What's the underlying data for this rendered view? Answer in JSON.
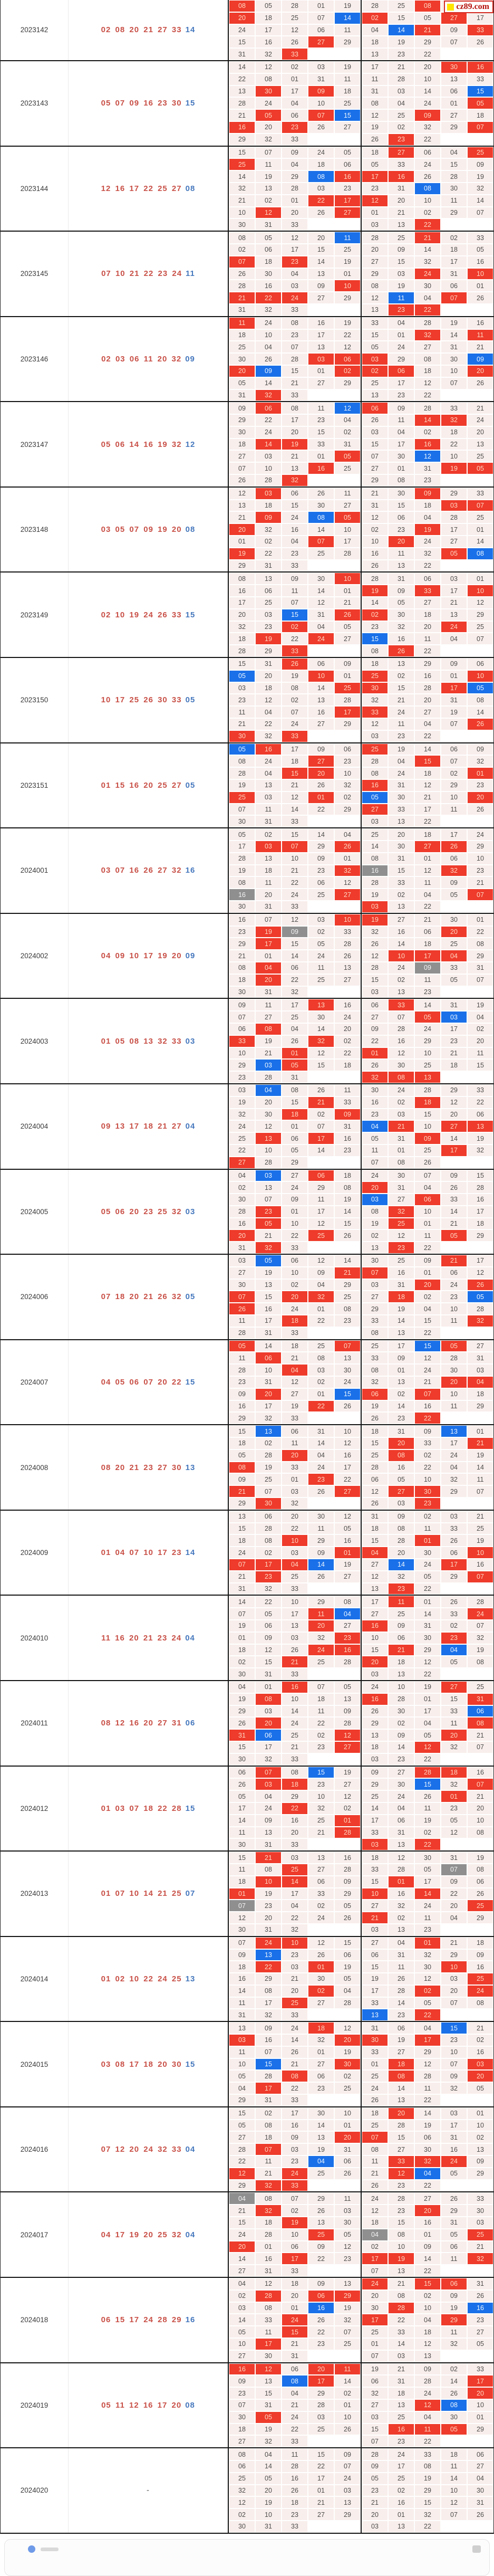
{
  "watermark": {
    "text": "cz89.com"
  },
  "labels": {
    "pending": "-"
  },
  "colors": {
    "cell_red": "#ee3b2b",
    "cell_blue": "#1a70e8",
    "cell_gray": "#8f8f8f",
    "win_red": "#c85047",
    "win_blue": "#4678bd"
  },
  "blocks": [
    {
      "period": "2023142",
      "reds": [
        "02",
        "08",
        "20",
        "21",
        "27",
        "33"
      ],
      "blue": "14",
      "clipped": true,
      "gridA": [
        "08 05 28 01 19",
        "20 18 25 07 14",
        "24 17 12 06 11",
        "15 16 26 27 29",
        "31 32 33"
      ],
      "gridB": [
        "28 25 08 _ _",
        "02 15 05 27 17",
        "04 14 21 09 33",
        "18 19 29 07 26",
        "13 23 22"
      ]
    },
    {
      "period": "2023143",
      "reds": [
        "05",
        "07",
        "09",
        "16",
        "23",
        "30"
      ],
      "blue": "15",
      "gridA": [
        "14 12 02 03 19",
        "22 08 01 31 11",
        "13 30 17 09 18",
        "28 24 04 10 25",
        "21 05 06 07 15",
        "16 20 23 26 27",
        "29 32 33"
      ],
      "gridB": [
        "17 21 20 30 16",
        "11 28 10 13 33",
        "31 03 14 06 15",
        "08 04 24 01 05",
        "12 25 09 27 18",
        "19 02 32 29 07",
        "26 23 22"
      ]
    },
    {
      "period": "2023144",
      "reds": [
        "12",
        "16",
        "17",
        "22",
        "25",
        "27"
      ],
      "blue": "08",
      "gridA": [
        "15 07 09 24 05",
        "25 11 04 18 06",
        "14 19 29 08 16",
        "32 13 28 03 23",
        "21 02 01 22 17",
        "10 12 20 26 27",
        "30 31 33"
      ],
      "gridB": [
        "18 27 06 04 25",
        "05 33 24 15 09",
        "17 16 26 28 19",
        "23 31 08 30 32",
        "12 20 10 11 14",
        "01 21 02 29 07",
        "03 13 22"
      ]
    },
    {
      "period": "2023145",
      "reds": [
        "07",
        "10",
        "21",
        "22",
        "23",
        "24"
      ],
      "blue": "11",
      "gridA": [
        "08 05 12 20 11",
        "02 06 17 15 25",
        "07 18 23 14 19",
        "26 30 04 13 01",
        "28 16 03 09 10",
        "21 22 24 27 29",
        "31 32 33"
      ],
      "gridB": [
        "28 25 21 02 33",
        "20 09 14 18 05",
        "27 15 32 17 16",
        "29 03 24 31 10",
        "08 19 30 06 01",
        "12 11 04 07 26",
        "13 23 22"
      ]
    },
    {
      "period": "2023146",
      "reds": [
        "02",
        "03",
        "06",
        "11",
        "20",
        "32"
      ],
      "blue": "09",
      "gridA": [
        "11 24 08 16 19",
        "18 10 23 17 22",
        "25 04 07 13 12",
        "30 26 28 03 06",
        "20 09 15 01 02",
        "05 14 21 27 29",
        "31 32 33"
      ],
      "gridB": [
        "33 04 28 19 16",
        "15 01 32 14 11",
        "05 24 27 31 21",
        "03 29 08 30 09",
        "02 06 18 10 20",
        "25 17 12 07 26",
        "13 23 22"
      ]
    },
    {
      "period": "2023147",
      "reds": [
        "05",
        "06",
        "14",
        "16",
        "19",
        "32"
      ],
      "blue": "12",
      "gridA": [
        "09 06 08 11 12",
        "29 22 17 23 04",
        "30 24 20 15 02",
        "18 14 19 33 31",
        "27 03 21 01 05",
        "07 10 13 16 25",
        "26 28 32"
      ],
      "gridB": [
        "06 09 28 33 21",
        "26 11 14 32 24",
        "03 04 02 18 20",
        "15 17 16 22 13",
        "07 30 12 10 25",
        "27 01 31 19 05",
        "29 08 23"
      ]
    },
    {
      "period": "2023148",
      "reds": [
        "03",
        "05",
        "07",
        "09",
        "19",
        "20"
      ],
      "blue": "08",
      "gridA": [
        "12 03 06 26 11",
        "13 18 15 30 27",
        "21 09 24 08 05",
        "20 32 16 14 10",
        "01 02 04 07 17",
        "19 22 23 25 28",
        "29 31 33"
      ],
      "gridB": [
        "21 30 09 29 33",
        "31 15 18 03 07",
        "12 06 04 28 25",
        "02 23 19 17 01",
        "10 20 24 27 14",
        "16 11 32 05 08",
        "26 13 22"
      ]
    },
    {
      "period": "2023149",
      "reds": [
        "02",
        "10",
        "19",
        "24",
        "26",
        "33"
      ],
      "blue": "15",
      "gridA": [
        "08 13 09 30 10",
        "16 06 11 14 01",
        "17 25 07 12 21",
        "20 03 15 31 26",
        "32 23 02 04 05",
        "18 19 22 24 27",
        "28 29 33"
      ],
      "gridB": [
        "28 31 06 03 01",
        "19 09 33 17 10",
        "14 05 27 21 12",
        "02 30 18 13 29",
        "23 32 20 24 25",
        "15 16 11 04 07",
        "08 26 22"
      ]
    },
    {
      "period": "2023150",
      "reds": [
        "10",
        "17",
        "25",
        "26",
        "30",
        "33"
      ],
      "blue": "05",
      "gridA": [
        "15 31 26 06 09",
        "05 20 19 10 01",
        "03 18 08 14 25",
        "23 12 02 13 28",
        "11 04 07 16 17",
        "21 22 24 27 29",
        "30 32 33"
      ],
      "gridB": [
        "18 13 29 09 06",
        "25 02 16 01 10",
        "30 15 28 17 05",
        "32 21 20 31 08",
        "33 24 27 19 14",
        "12 11 04 07 26",
        "03 23 22"
      ]
    },
    {
      "period": "2023151",
      "reds": [
        "01",
        "15",
        "16",
        "20",
        "25",
        "27"
      ],
      "blue": "05",
      "gridA": [
        "05 16 17 09 06",
        "08 24 18 27 23",
        "28 04 15 20 10",
        "19 13 21 26 32",
        "25 03 12 01 02",
        "07 11 14 22 29",
        "30 31 33"
      ],
      "gridB": [
        "25 19 14 06 09",
        "28 04 15 07 32",
        "08 24 18 02 01",
        "16 31 12 29 23",
        "05 30 21 10 20",
        "27 33 17 11 26",
        "03 13 22"
      ]
    },
    {
      "period": "2024001",
      "reds": [
        "03",
        "07",
        "16",
        "26",
        "27",
        "32"
      ],
      "blue": "16",
      "gridA": [
        "05 02 15 14 04",
        "17 03 07 29 26",
        "28 13 10 09 01",
        "19 18 21 23 32",
        "08 11 22 06 12",
        "16 20 24 25 27",
        "30 31 33"
      ],
      "gridB": [
        "25 20 18 17 24",
        "14 30 27 26 29",
        "08 31 01 06 10",
        "16 15 12 32 23",
        "28 33 11 09 21",
        "19 02 04 05 07",
        "03 13 22"
      ]
    },
    {
      "period": "2024002",
      "reds": [
        "04",
        "09",
        "10",
        "17",
        "19",
        "20"
      ],
      "blue": "09",
      "gridA": [
        "16 07 12 03 10",
        "23 19 09 02 33",
        "29 17 15 05 28",
        "21 01 14 24 26",
        "08 04 06 11 13",
        "18 20 22 25 27",
        "30 31 32"
      ],
      "gridB": [
        "19 27 21 30 01",
        "32 16 06 20 22",
        "26 14 18 25 08",
        "12 10 17 04 29",
        "28 24 09 33 31",
        "15 02 11 05 07",
        "03 13 23"
      ]
    },
    {
      "period": "2024003",
      "reds": [
        "01",
        "05",
        "08",
        "13",
        "32",
        "33"
      ],
      "blue": "03",
      "gridA": [
        "09 11 17 13 16",
        "07 27 25 30 24",
        "06 08 04 14 20",
        "33 19 26 32 02",
        "10 21 01 12 22",
        "29 03 05 15 18",
        "23 28 31"
      ],
      "gridB": [
        "06 33 14 31 19",
        "27 07 05 03 04",
        "09 28 24 17 02",
        "22 16 29 23 20",
        "01 12 10 21 11",
        "26 30 25 18 15",
        "32 08 13"
      ]
    },
    {
      "period": "2024004",
      "reds": [
        "09",
        "13",
        "17",
        "18",
        "21",
        "27"
      ],
      "blue": "04",
      "gridA": [
        "03 04 08 26 11",
        "19 20 15 21 33",
        "32 30 18 02 09",
        "24 12 01 07 31",
        "25 13 06 17 16",
        "22 10 05 14 23",
        "27 28 29"
      ],
      "gridB": [
        "30 24 28 29 33",
        "16 02 18 12 22",
        "23 03 15 20 06",
        "04 21 10 27 13",
        "05 31 09 14 19",
        "11 01 25 17 32",
        "07 08 26"
      ]
    },
    {
      "period": "2024005",
      "reds": [
        "05",
        "06",
        "20",
        "23",
        "25",
        "32"
      ],
      "blue": "03",
      "gridA": [
        "04 03 27 06 18",
        "02 13 24 29 08",
        "30 07 09 11 19",
        "28 23 01 17 14",
        "16 05 10 12 15",
        "20 21 22 25 26",
        "31 32 33"
      ],
      "gridB": [
        "24 30 07 09 15",
        "20 31 04 26 28",
        "03 27 06 33 16",
        "08 32 10 14 17",
        "19 25 01 21 18",
        "02 12 11 05 29",
        "13 23 22"
      ]
    },
    {
      "period": "2024006",
      "reds": [
        "07",
        "18",
        "20",
        "21",
        "26",
        "32"
      ],
      "blue": "05",
      "gridA": [
        "03 05 06 12 14",
        "27 19 10 09 21",
        "30 13 02 04 29",
        "07 15 20 32 25",
        "26 16 24 01 08",
        "11 17 18 22 23",
        "28 31 33"
      ],
      "gridB": [
        "30 25 09 21 17",
        "07 16 01 06 12",
        "03 31 20 24 26",
        "27 18 02 23 05",
        "29 19 04 10 28",
        "33 14 15 11 32",
        "08 13 22"
      ]
    },
    {
      "period": "2024007",
      "reds": [
        "04",
        "05",
        "06",
        "07",
        "20",
        "22"
      ],
      "blue": "15",
      "gridA": [
        "05 14 18 25 07",
        "11 06 21 08 13",
        "28 10 04 03 30",
        "23 31 12 02 24",
        "09 20 27 01 15",
        "16 17 19 22 26",
        "29 32 33"
      ],
      "gridB": [
        "25 17 15 05 27",
        "33 09 12 28 31",
        "08 01 24 30 03",
        "32 13 21 20 04",
        "06 02 07 10 18",
        "19 14 16 11 29",
        "26 23 22"
      ]
    },
    {
      "period": "2024008",
      "reds": [
        "08",
        "20",
        "21",
        "23",
        "27",
        "30"
      ],
      "blue": "13",
      "gridA": [
        "15 13 06 31 10",
        "18 02 11 14 12",
        "05 28 20 04 16",
        "08 19 33 24 17",
        "09 25 01 23 22",
        "21 07 03 26 27",
        "29 30 32"
      ],
      "gridB": [
        "18 31 09 13 01",
        "15 20 33 17 21",
        "25 08 02 24 19",
        "28 16 22 04 14",
        "06 05 10 32 11",
        "12 27 30 29 07",
        "26 03 23"
      ]
    },
    {
      "period": "2024009",
      "reds": [
        "01",
        "04",
        "07",
        "10",
        "17",
        "23"
      ],
      "blue": "14",
      "gridA": [
        "13 06 20 30 12",
        "15 28 22 11 05",
        "18 08 10 29 16",
        "24 02 03 09 01",
        "07 17 04 14 19",
        "21 23 25 26 27",
        "31 32 33"
      ],
      "gridB": [
        "31 09 02 03 21",
        "18 08 11 33 25",
        "15 28 01 26 19",
        "04 20 30 06 10",
        "27 14 24 17 16",
        "12 32 05 29 07",
        "13 23 22"
      ]
    },
    {
      "period": "2024010",
      "reds": [
        "11",
        "16",
        "20",
        "21",
        "23",
        "24"
      ],
      "blue": "04",
      "gridA": [
        "14 22 10 29 08",
        "07 05 17 11 04",
        "19 06 13 20 27",
        "01 09 03 32 23",
        "18 12 26 24 16",
        "02 15 21 25 28",
        "30 31 33"
      ],
      "gridB": [
        "17 11 01 26 28",
        "27 25 14 33 24",
        "16 09 31 02 07",
        "10 06 30 23 32",
        "15 21 29 04 19",
        "20 18 12 05 08",
        "03 13 22"
      ]
    },
    {
      "period": "2024011",
      "reds": [
        "08",
        "12",
        "16",
        "20",
        "27",
        "31"
      ],
      "blue": "06",
      "gridA": [
        "04 01 16 07 05",
        "19 08 10 18 13",
        "29 03 14 11 09",
        "26 20 24 22 28",
        "31 06 25 02 12",
        "15 17 21 23 27",
        "30 32 33"
      ],
      "gridB": [
        "24 10 19 27 25",
        "16 28 01 15 31",
        "26 30 17 33 06",
        "29 02 04 11 08",
        "13 09 05 20 21",
        "18 14 12 32 07",
        "03 23 22"
      ]
    },
    {
      "period": "2024012",
      "reds": [
        "01",
        "03",
        "07",
        "18",
        "22",
        "28"
      ],
      "blue": "15",
      "gridA": [
        "06 07 08 15 19",
        "26 03 18 23 27",
        "05 04 29 10 12",
        "17 24 22 32 02",
        "14 09 16 25 01",
        "11 13 20 21 28",
        "30 31 33"
      ],
      "gridB": [
        "09 27 28 18 16",
        "29 30 15 32 07",
        "25 24 26 01 21",
        "14 04 11 23 20",
        "17 06 19 05 10",
        "33 31 02 12 08",
        "03 13 22"
      ]
    },
    {
      "period": "2024013",
      "reds": [
        "01",
        "07",
        "10",
        "14",
        "21",
        "25"
      ],
      "blue": "07",
      "gridA": [
        "15 21 03 13 16",
        "11 08 25 27 28",
        "18 10 14 06 09",
        "01 19 17 33 29",
        "07 23 04 02 05",
        "12 20 22 24 26",
        "30 31 32"
      ],
      "gridB": [
        "18 12 30 31 19",
        "33 28 05 07 08",
        "15 01 17 09 06",
        "10 16 14 22 26",
        "27 32 24 20 25",
        "21 02 11 04 29",
        "03 13 23"
      ]
    },
    {
      "period": "2024014",
      "reds": [
        "01",
        "02",
        "10",
        "22",
        "24",
        "25"
      ],
      "blue": "13",
      "gridA": [
        "07 24 10 12 15",
        "09 13 23 26 06",
        "18 22 03 01 19",
        "16 29 21 30 05",
        "14 08 20 02 04",
        "11 17 25 27 28",
        "31 32 33"
      ],
      "gridB": [
        "27 04 01 21 18",
        "06 31 32 29 09",
        "15 11 30 10 16",
        "19 26 12 03 25",
        "17 28 02 20 24",
        "33 14 05 07 08",
        "13 23 22"
      ]
    },
    {
      "period": "2024015",
      "reds": [
        "03",
        "08",
        "17",
        "18",
        "20",
        "30"
      ],
      "blue": "15",
      "gridA": [
        "13 09 24 18 12",
        "03 16 14 32 20",
        "11 07 26 01 19",
        "10 15 21 27 30",
        "05 28 08 06 02",
        "04 17 22 23 25",
        "29 31 33"
      ],
      "gridB": [
        "31 06 04 15 21",
        "30 19 17 23 02",
        "33 27 29 10 16",
        "01 18 12 07 03",
        "25 08 28 09 20",
        "24 14 11 32 05",
        "26 13 22"
      ]
    },
    {
      "period": "2024016",
      "reds": [
        "07",
        "12",
        "20",
        "24",
        "32",
        "33"
      ],
      "blue": "04",
      "gridA": [
        "15 02 17 30 10",
        "05 08 16 14 01",
        "27 18 09 13 20",
        "28 07 03 19 31",
        "22 11 23 04 06",
        "12 21 24 25 26",
        "29 32 33"
      ],
      "gridB": [
        "18 20 14 03 01",
        "25 28 19 17 10",
        "07 15 06 31 02",
        "08 27 30 16 13",
        "11 33 32 24 09",
        "21 12 04 05 29",
        "26 23 22"
      ]
    },
    {
      "period": "2024017",
      "reds": [
        "04",
        "17",
        "19",
        "20",
        "25",
        "32"
      ],
      "blue": "04",
      "gridA": [
        "04 08 07 29 11",
        "21 32 02 26 03",
        "15 18 19 13 30",
        "24 28 10 25 05",
        "20 01 06 09 12",
        "14 16 17 22 23",
        "27 31 33"
      ],
      "gridB": [
        "24 28 27 26 33",
        "12 23 20 29 30",
        "18 15 16 31 03",
        "04 08 01 05 25",
        "02 10 09 06 21",
        "17 19 14 11 32",
        "07 13 22"
      ]
    },
    {
      "period": "2024018",
      "reds": [
        "06",
        "15",
        "17",
        "24",
        "28",
        "29"
      ],
      "blue": "16",
      "gridA": [
        "04 12 18 09 13",
        "02 28 20 06 29",
        "03 08 01 16 19",
        "14 33 24 26 32",
        "05 11 15 22 07",
        "10 17 21 23 25",
        "27 30 31"
      ],
      "gridB": [
        "24 21 15 06 31",
        "20 08 02 09 26",
        "30 28 10 19 16",
        "17 22 04 29 23",
        "25 33 18 11 27",
        "01 14 12 32 05",
        "07 03 13"
      ]
    },
    {
      "period": "2024019",
      "reds": [
        "05",
        "11",
        "12",
        "16",
        "17",
        "20"
      ],
      "blue": "08",
      "gridA": [
        "16 12 06 20 11",
        "09 13 08 17 14",
        "23 15 04 29 02",
        "07 31 21 28 01",
        "30 05 24 03 10",
        "18 19 22 25 26",
        "27 32 33"
      ],
      "gridB": [
        "19 21 09 02 33",
        "06 31 28 14 17",
        "32 18 24 26 20",
        "27 13 12 08 10",
        "03 25 04 30 01",
        "15 16 11 05 29",
        "07 23 22"
      ]
    },
    {
      "period": "2024020",
      "reds": [],
      "blue": "",
      "gridA": [
        "08 04 11 15 09",
        "06 14 28 22 07",
        "25 05 16 17 24",
        "32 20 26 01 03",
        "12 19 18 21 13",
        "02 10 23 27 29",
        "30 31 33"
      ],
      "gridB": [
        "28 24 33 18 06",
        "09 17 08 11 27",
        "05 25 19 14 04",
        "23 02 29 10 30",
        "21 16 15 12 31",
        "20 01 32 07 26",
        "03 13 22"
      ]
    }
  ]
}
